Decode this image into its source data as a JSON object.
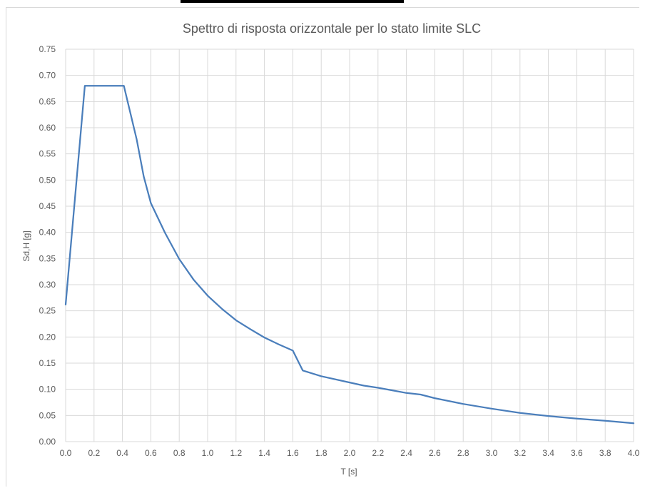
{
  "chart_data": {
    "type": "line",
    "title": "Spettro di risposta orizzontale per lo stato limite SLC",
    "xlabel": "T [s]",
    "ylabel": "Sd,H [g]",
    "xlim": [
      0.0,
      4.0
    ],
    "ylim": [
      0.0,
      0.75
    ],
    "x_ticks": [
      "0.0",
      "0.2",
      "0.4",
      "0.6",
      "0.8",
      "1.0",
      "1.2",
      "1.4",
      "1.6",
      "1.8",
      "2.0",
      "2.2",
      "2.4",
      "2.6",
      "2.8",
      "3.0",
      "3.2",
      "3.4",
      "3.6",
      "3.8",
      "4.0"
    ],
    "y_ticks": [
      "0.00",
      "0.05",
      "0.10",
      "0.15",
      "0.20",
      "0.25",
      "0.30",
      "0.35",
      "0.40",
      "0.45",
      "0.50",
      "0.55",
      "0.60",
      "0.65",
      "0.70",
      "0.75"
    ],
    "grid": "vertical and horizontal",
    "legend": "none",
    "series": [
      {
        "color": "#4a7ebb",
        "x": [
          0.0,
          0.135,
          0.41,
          0.5,
          0.55,
          0.6,
          0.7,
          0.8,
          0.9,
          1.0,
          1.1,
          1.2,
          1.3,
          1.4,
          1.5,
          1.6,
          1.67,
          1.8,
          2.0,
          2.1,
          2.2,
          2.3,
          2.4,
          2.5,
          2.6,
          2.8,
          3.0,
          3.2,
          3.4,
          3.6,
          3.8,
          4.0
        ],
        "y": [
          0.262,
          0.68,
          0.68,
          0.578,
          0.507,
          0.456,
          0.399,
          0.349,
          0.31,
          0.279,
          0.254,
          0.232,
          0.215,
          0.199,
          0.186,
          0.174,
          0.136,
          0.125,
          0.113,
          0.107,
          0.103,
          0.098,
          0.093,
          0.09,
          0.083,
          0.072,
          0.063,
          0.055,
          0.049,
          0.044,
          0.04,
          0.035
        ]
      }
    ]
  }
}
